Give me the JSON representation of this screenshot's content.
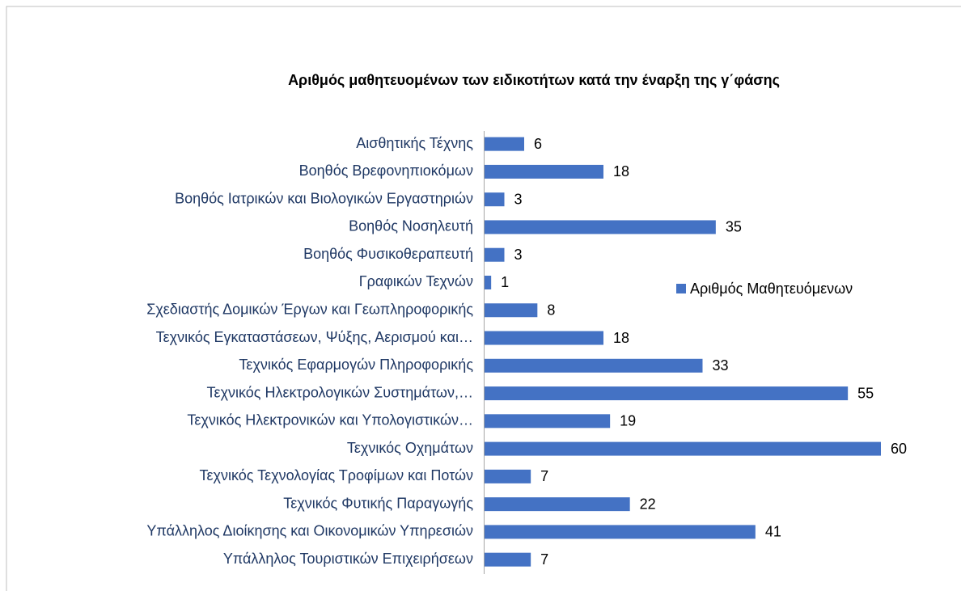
{
  "chart_data": {
    "type": "bar",
    "orientation": "horizontal",
    "title": "Αριθμός μαθητευομένων των ειδικοτήτων κατά την έναρξη της γ΄φάσης",
    "categories": [
      "Αισθητικής Τέχνης",
      "Βοηθός Βρεφονηπιοκόμων",
      "Βοηθός Ιατρικών και Βιολογικών Εργαστηριών",
      "Βοηθός Νοσηλευτή",
      "Βοηθός Φυσικοθεραπευτή",
      "Γραφικών Τεχνών",
      "Σχεδιαστής Δομικών Έργων και Γεωπληροφορικής",
      "Τεχνικός Εγκαταστάσεων, Ψύξης, Αερισμού και…",
      "Τεχνικός Εφαρμογών Πληροφορικής",
      "Τεχνικός Ηλεκτρολογικών Συστημάτων,…",
      "Τεχνικός Ηλεκτρονικών και Υπολογιστικών…",
      "Τεχνικός Οχημάτων",
      "Τεχνικός Τεχνολογίας Τροφίμων και Ποτών",
      "Τεχνικός Φυτικής Παραγωγής",
      "Υπάλληλος Διοίκησης και Οικονομικών Υπηρεσιών",
      "Υπάλληλος Τουριστικών Επιχειρήσεων"
    ],
    "series": [
      {
        "name": "Αριθμός Μαθητευόμενων",
        "color": "#4472c4",
        "values": [
          6,
          18,
          3,
          35,
          3,
          1,
          8,
          18,
          33,
          55,
          19,
          60,
          7,
          22,
          41,
          7
        ]
      }
    ],
    "legend": "right"
  }
}
